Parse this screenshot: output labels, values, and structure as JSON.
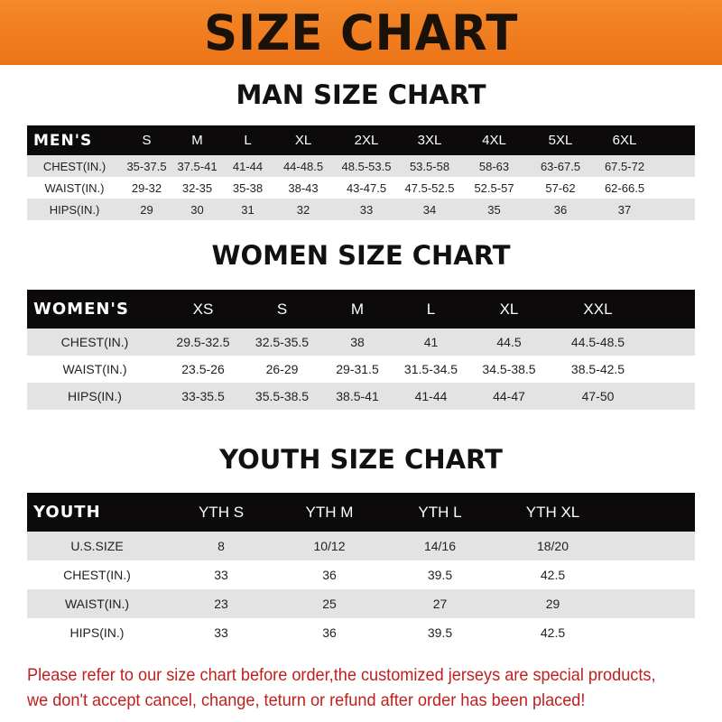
{
  "banner_title": "SIZE CHART",
  "men": {
    "title": "MAN SIZE CHART",
    "headers": [
      "MEN'S",
      "S",
      "M",
      "L",
      "XL",
      "2XL",
      "3XL",
      "4XL",
      "5XL",
      "6XL"
    ],
    "rows": [
      [
        "CHEST(IN.)",
        "35-37.5",
        "37.5-41",
        "41-44",
        "44-48.5",
        "48.5-53.5",
        "53.5-58",
        "58-63",
        "63-67.5",
        "67.5-72"
      ],
      [
        "WAIST(IN.)",
        "29-32",
        "32-35",
        "35-38",
        "38-43",
        "43-47.5",
        "47.5-52.5",
        "52.5-57",
        "57-62",
        "62-66.5"
      ],
      [
        "HIPS(IN.)",
        "29",
        "30",
        "31",
        "32",
        "33",
        "34",
        "35",
        "36",
        "37"
      ]
    ]
  },
  "women": {
    "title": "WOMEN SIZE CHART",
    "headers": [
      "WOMEN'S",
      "XS",
      "S",
      "M",
      "L",
      "XL",
      "XXL"
    ],
    "rows": [
      [
        "CHEST(IN.)",
        "29.5-32.5",
        "32.5-35.5",
        "38",
        "41",
        "44.5",
        "44.5-48.5"
      ],
      [
        "WAIST(IN.)",
        "23.5-26",
        "26-29",
        "29-31.5",
        "31.5-34.5",
        "34.5-38.5",
        "38.5-42.5"
      ],
      [
        "HIPS(IN.)",
        "33-35.5",
        "35.5-38.5",
        "38.5-41",
        "41-44",
        "44-47",
        "47-50"
      ]
    ]
  },
  "youth": {
    "title": "YOUTH SIZE CHART",
    "headers": [
      "YOUTH",
      "YTH S",
      "YTH M",
      "YTH L",
      "YTH XL"
    ],
    "rows": [
      [
        "U.S.SIZE",
        "8",
        "10/12",
        "14/16",
        "18/20"
      ],
      [
        "CHEST(IN.)",
        "33",
        "36",
        "39.5",
        "42.5"
      ],
      [
        "WAIST(IN.)",
        "23",
        "25",
        "27",
        "29"
      ],
      [
        "HIPS(IN.)",
        "33",
        "36",
        "39.5",
        "42.5"
      ]
    ]
  },
  "note": {
    "line1": "Please refer to our size chart before order,the customized jerseys are special products,",
    "line2": "we don't accept cancel, change, teturn or refund after order has been placed!"
  },
  "colors": {
    "banner": "#ef7d1f",
    "header_row": "#0c0a0a",
    "stripe": "#e3e3e3",
    "note": "#c0201e"
  }
}
